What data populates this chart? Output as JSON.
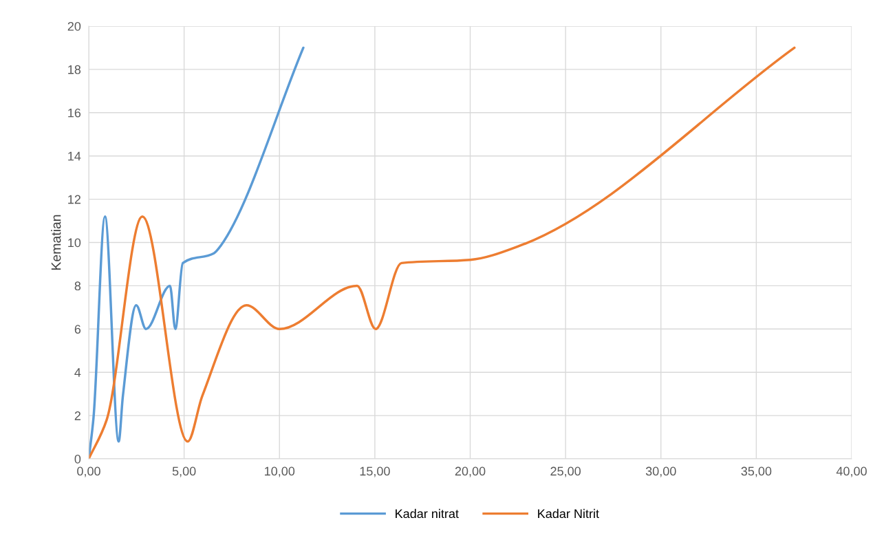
{
  "chart_data": {
    "type": "line",
    "ylabel": "Kematian",
    "xlim": [
      0,
      40
    ],
    "xticks": [
      {
        "value": 0,
        "label": "0,00"
      },
      {
        "value": 5,
        "label": "5,00"
      },
      {
        "value": 10,
        "label": "10,00"
      },
      {
        "value": 15,
        "label": "15,00"
      },
      {
        "value": 20,
        "label": "20,00"
      },
      {
        "value": 25,
        "label": "25,00"
      },
      {
        "value": 30,
        "label": "30,00"
      },
      {
        "value": 35,
        "label": "35,00"
      },
      {
        "value": 40,
        "label": "40,00"
      }
    ],
    "ylim": [
      0,
      20
    ],
    "yticks": [
      0,
      2,
      4,
      6,
      8,
      10,
      12,
      14,
      16,
      18,
      20
    ],
    "grid": true,
    "legend": "bottom",
    "marker": "none",
    "line_style": "solid",
    "series": [
      {
        "name": "Kadar nitrat",
        "color": "#5b9bd5",
        "x": [
          0,
          0.25,
          0.85,
          1.57,
          1.79,
          2.49,
          3.0,
          4.26,
          4.54,
          4.93,
          6.56,
          6.92,
          11.25
        ],
        "values": [
          0,
          1.9,
          11.2,
          0.8,
          2.9,
          7.1,
          6.0,
          8.0,
          6.0,
          9.05,
          9.5,
          9.85,
          19.0
        ]
      },
      {
        "name": "Kadar Nitrit",
        "color": "#ed7d31",
        "x": [
          0,
          0.94,
          2.81,
          5.19,
          5.95,
          8.27,
          10.0,
          14.07,
          15.04,
          16.4,
          20.0,
          22.6,
          37.0
        ],
        "values": [
          0,
          1.8,
          11.2,
          0.8,
          2.9,
          7.1,
          6.0,
          8.0,
          6.0,
          9.05,
          9.2,
          9.85,
          19.0
        ]
      }
    ]
  }
}
